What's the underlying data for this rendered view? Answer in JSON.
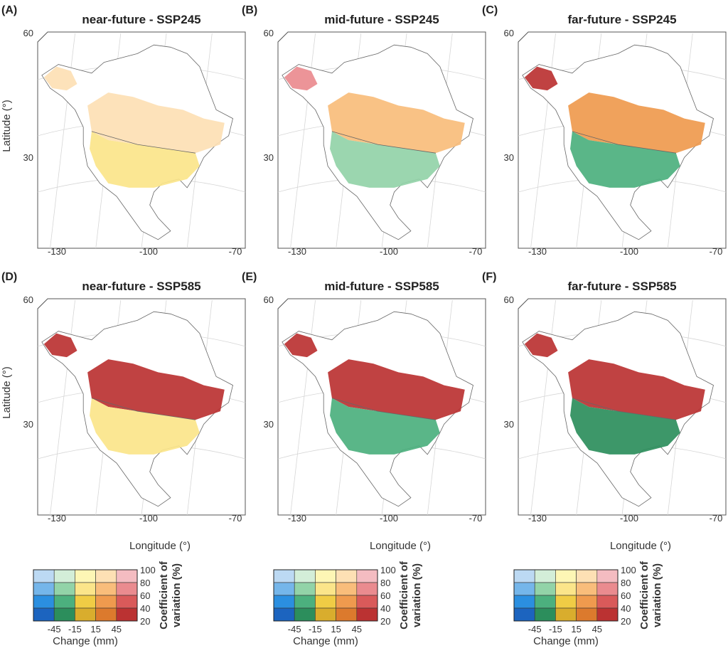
{
  "chart_data": {
    "type": "heatmap",
    "panels": [
      {
        "id": "(A)",
        "horizon": "near-future",
        "separator": "-",
        "scenario": "SSP245"
      },
      {
        "id": "(B)",
        "horizon": "mid-future",
        "separator": "-",
        "scenario": "SSP245"
      },
      {
        "id": "(C)",
        "horizon": "far-future",
        "separator": "-",
        "scenario": "SSP245"
      },
      {
        "id": "(D)",
        "horizon": "near-future",
        "separator": "-",
        "scenario": "SSP585"
      },
      {
        "id": "(E)",
        "horizon": "mid-future",
        "separator": "-",
        "scenario": "SSP585"
      },
      {
        "id": "(F)",
        "horizon": "far-future",
        "separator": "-",
        "scenario": "SSP585"
      }
    ],
    "xlabel": "Longitude (°)",
    "ylabel": "Latitude (°)",
    "x_ticks": [
      "-130",
      "-100",
      "-70"
    ],
    "y_ticks": [
      "60",
      "30"
    ],
    "legend": {
      "x_label": "Change (mm)",
      "y_label_line1": "Coefficient of",
      "y_label_line2": "variation (%)",
      "x_ticks": [
        "-45",
        "-15",
        "15",
        "45"
      ],
      "y_ticks": [
        "100",
        "80",
        "60",
        "40",
        "20"
      ],
      "colors": [
        [
          "#bcd9f3",
          "#d3eed8",
          "#fdf6b5",
          "#fde0b4",
          "#f4bcc1"
        ],
        [
          "#75b6ea",
          "#92d3a8",
          "#fbe58a",
          "#f9bd7b",
          "#ea8b8f"
        ],
        [
          "#2b8fe0",
          "#4cb07e",
          "#f0cc45",
          "#ef9a4e",
          "#d95a5a"
        ],
        [
          "#1c64bf",
          "#2c8e5c",
          "#d9ad2d",
          "#dc7a2d",
          "#bb3232"
        ]
      ]
    }
  }
}
